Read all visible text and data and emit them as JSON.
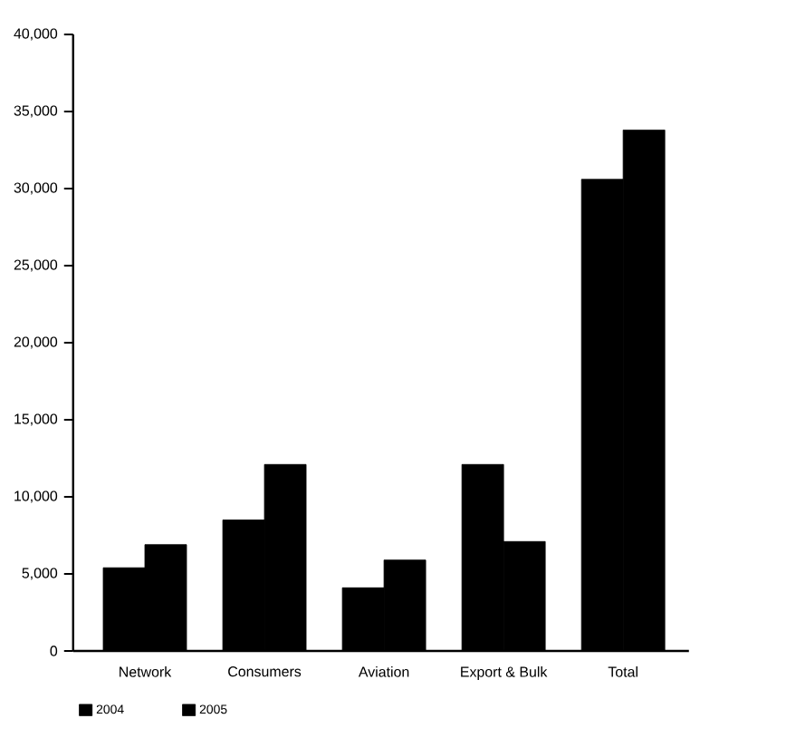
{
  "chart_data": {
    "type": "bar",
    "categories": [
      "Network",
      "Consumers",
      "Aviation",
      "Export & Bulk",
      "Total"
    ],
    "series": [
      {
        "name": "2004",
        "color": "#000000",
        "values": [
          5400,
          8500,
          4100,
          12100,
          30600
        ]
      },
      {
        "name": "2005",
        "color": "#000000",
        "values": [
          6900,
          12100,
          5900,
          7100,
          33800
        ]
      }
    ],
    "ylim": [
      0,
      40000
    ],
    "yticks": [
      0,
      {
        "value": 5000,
        "label": "5,000"
      },
      {
        "value": 10000,
        "label": "10,000"
      },
      {
        "value": 15000,
        "label": "15,000"
      },
      {
        "value": 20000,
        "label": "20,000"
      },
      {
        "value": 25000,
        "label": "25,000"
      },
      {
        "value": 30000,
        "label": "30,000"
      },
      {
        "value": 35000,
        "label": "35,000"
      },
      {
        "value": 40000,
        "label": "40,000"
      }
    ],
    "grid": false,
    "legend": "bottom"
  }
}
